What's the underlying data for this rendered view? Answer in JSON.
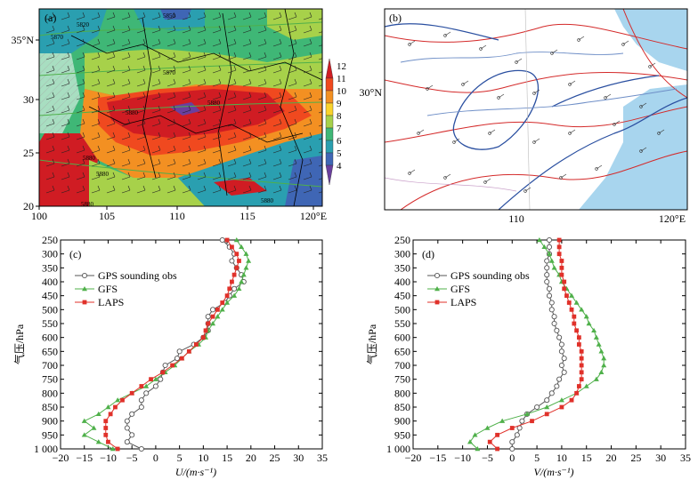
{
  "panel_a": {
    "tag": "(a)",
    "lon_ticks": [
      "100",
      "105",
      "110",
      "115",
      "120°E"
    ],
    "lat_ticks": [
      "20",
      "25",
      "30",
      "35°N"
    ],
    "colorbar_ticks": [
      "12",
      "11",
      "10",
      "9",
      "8",
      "7",
      "6",
      "5",
      "4"
    ],
    "colorbar_colors": [
      "#d01c23",
      "#f0491f",
      "#f39022",
      "#f9d32c",
      "#a7d14a",
      "#3fb776",
      "#2a9fb0",
      "#3f66b5",
      "#6a3f9e"
    ],
    "contour_labels": [
      "5820",
      "5850",
      "5870",
      "5870",
      "5880",
      "5880",
      "5880",
      "5880",
      "5880",
      "5880"
    ]
  },
  "panel_b": {
    "tag": "(b)",
    "lon_ticks": [
      "110",
      "120°E"
    ],
    "lat_ticks": [
      "30°N"
    ],
    "colors": {
      "sea": "#a8d5ee",
      "land": "#ffffff",
      "contour_red": "#d42a2a",
      "contour_blue": "#2a4fa0"
    }
  },
  "chart_data": [
    {
      "type": "line",
      "panel": "(c)",
      "xlabel": "U/(m·s⁻¹)",
      "ylabel": "气压/hPa",
      "xlim": [
        -20,
        35
      ],
      "ylim": [
        1000,
        250
      ],
      "x_ticks": [
        "−20",
        "−15",
        "−10",
        "−5",
        "0",
        "5",
        "10",
        "15",
        "20",
        "25",
        "30",
        "35"
      ],
      "y_ticks": [
        "250",
        "300",
        "350",
        "400",
        "450",
        "500",
        "550",
        "600",
        "650",
        "700",
        "750",
        "800",
        "850",
        "900",
        "950",
        "1 000"
      ],
      "levels": [
        250,
        275,
        300,
        325,
        350,
        375,
        400,
        425,
        450,
        475,
        500,
        525,
        550,
        575,
        600,
        625,
        650,
        675,
        700,
        725,
        750,
        775,
        800,
        825,
        850,
        875,
        900,
        925,
        950,
        975,
        1000
      ],
      "series": [
        {
          "name": "GPS sounding obs",
          "color": "#555555",
          "marker": "circle",
          "values": [
            14,
            15.5,
            16.5,
            16,
            17,
            18,
            18.5,
            16.5,
            15.5,
            14.5,
            12,
            11,
            11,
            11,
            10,
            8,
            5,
            4.5,
            2,
            1.5,
            1,
            0,
            -2,
            -3,
            -3,
            -5,
            -6,
            -6,
            -5,
            -6,
            -3
          ]
        },
        {
          "name": "GFS",
          "color": "#4fb04a",
          "marker": "triangle",
          "values": [
            17,
            18,
            19,
            19.5,
            19,
            18.5,
            18,
            17.5,
            16.5,
            15,
            14,
            13,
            12,
            11,
            10.5,
            9,
            7,
            5.5,
            4,
            2,
            0,
            -2,
            -5,
            -8,
            -10,
            -12,
            -15,
            -13,
            -15,
            -12,
            -9
          ]
        },
        {
          "name": "LAPS",
          "color": "#e0312a",
          "marker": "square",
          "values": [
            15,
            16,
            17,
            17.5,
            17,
            16.5,
            16,
            15.5,
            15,
            14,
            13,
            12,
            11,
            10.5,
            10,
            8.5,
            7,
            5.5,
            3.5,
            1.5,
            -1,
            -3,
            -5,
            -7,
            -8.5,
            -9.5,
            -10.5,
            -10.5,
            -10.5,
            -10,
            -8
          ]
        }
      ]
    },
    {
      "type": "line",
      "panel": "(d)",
      "xlabel": "V/(m·s⁻¹)",
      "ylabel": "气压/hPa",
      "xlim": [
        -20,
        35
      ],
      "ylim": [
        1000,
        250
      ],
      "x_ticks": [
        "−20",
        "−15",
        "−10",
        "−5",
        "0",
        "5",
        "10",
        "15",
        "20",
        "25",
        "30",
        "35"
      ],
      "y_ticks": [
        "250",
        "300",
        "350",
        "400",
        "450",
        "500",
        "550",
        "600",
        "650",
        "700",
        "750",
        "800",
        "850",
        "900",
        "950",
        "1 000"
      ],
      "levels": [
        250,
        275,
        300,
        325,
        350,
        375,
        400,
        425,
        450,
        475,
        500,
        525,
        550,
        575,
        600,
        625,
        650,
        675,
        700,
        725,
        750,
        775,
        800,
        825,
        850,
        875,
        900,
        925,
        950,
        975,
        1000
      ],
      "series": [
        {
          "name": "GPS sounding obs",
          "color": "#555555",
          "marker": "circle",
          "values": [
            7.5,
            7.5,
            7.5,
            7,
            7,
            7,
            7,
            7.5,
            7.5,
            8,
            8,
            8.5,
            8.5,
            9,
            9.5,
            10,
            10,
            10.5,
            10,
            10.5,
            9.5,
            9,
            8,
            7,
            5,
            3,
            2,
            1.5,
            1,
            0,
            0
          ]
        },
        {
          "name": "GFS",
          "color": "#4fb04a",
          "marker": "triangle",
          "values": [
            5.5,
            6.5,
            7.5,
            8,
            8.5,
            9.5,
            10,
            11,
            12,
            13,
            14,
            15,
            15.5,
            16.5,
            17,
            17.5,
            18,
            18.5,
            18.5,
            18,
            17,
            15,
            13,
            10,
            7,
            3,
            -2,
            -5,
            -7.5,
            -8.5,
            -7
          ]
        },
        {
          "name": "LAPS",
          "color": "#e0312a",
          "marker": "square",
          "values": [
            9.5,
            9.5,
            9.5,
            10,
            10,
            10,
            10.5,
            10.5,
            11,
            11.5,
            12,
            12.5,
            12.5,
            13,
            13.5,
            13.5,
            14,
            14,
            14,
            14,
            14,
            13.5,
            13,
            12,
            10,
            7,
            4,
            0,
            -3,
            -4.5,
            -3
          ]
        }
      ]
    }
  ]
}
